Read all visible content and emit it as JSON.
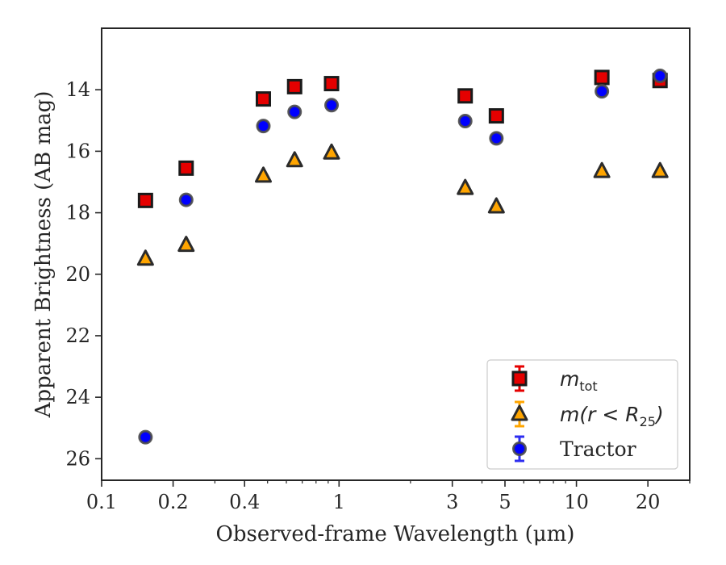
{
  "chart_data": {
    "type": "scatter",
    "title": "",
    "xlabel": "Observed-frame Wavelength (μm)",
    "ylabel": "Apparent Brightness (AB mag)",
    "xscale": "log",
    "xlim": [
      0.1,
      30
    ],
    "ylim": [
      26.7,
      12.0
    ],
    "y_inverted": true,
    "grid": false,
    "legend_position": "lower right",
    "x_ticks": [
      {
        "value": 0.1,
        "label": "0.1"
      },
      {
        "value": 0.2,
        "label": "0.2"
      },
      {
        "value": 0.4,
        "label": "0.4"
      },
      {
        "value": 1,
        "label": "1"
      },
      {
        "value": 3,
        "label": "3"
      },
      {
        "value": 5,
        "label": "5"
      },
      {
        "value": 10,
        "label": "10"
      },
      {
        "value": 20,
        "label": "20"
      }
    ],
    "y_ticks": [
      {
        "value": 14,
        "label": "14"
      },
      {
        "value": 16,
        "label": "16"
      },
      {
        "value": 18,
        "label": "18"
      },
      {
        "value": 20,
        "label": "20"
      },
      {
        "value": 22,
        "label": "22"
      },
      {
        "value": 24,
        "label": "24"
      },
      {
        "value": 26,
        "label": "26"
      }
    ],
    "series": [
      {
        "name": "m_tot",
        "legend_main": "m",
        "legend_sub": "tot",
        "marker": "square",
        "color": "#e50000",
        "errcolor": "#e50000",
        "edge": "#1a1a1a",
        "x": [
          0.153,
          0.227,
          0.48,
          0.65,
          0.93,
          3.4,
          4.6,
          12.8,
          22.5
        ],
        "y": [
          17.6,
          16.55,
          14.3,
          13.9,
          13.8,
          14.2,
          14.85,
          13.6,
          13.7
        ]
      },
      {
        "name": "m(r < R_25)",
        "legend_main": "m(r < R",
        "legend_sub": "25",
        "legend_tail": ")",
        "marker": "triangle",
        "color": "#ffa500",
        "errcolor": "#ffa500",
        "edge": "#2b2b2b",
        "x": [
          0.153,
          0.227,
          0.48,
          0.65,
          0.93,
          3.4,
          4.6,
          12.8,
          22.5
        ],
        "y": [
          19.5,
          19.05,
          16.8,
          16.3,
          16.05,
          17.2,
          17.8,
          16.65,
          16.65
        ]
      },
      {
        "name": "Tractor",
        "legend_main": "Tractor",
        "marker": "circle",
        "color": "#0000ff",
        "errcolor": "#2d2df0",
        "edge": "#4a4a4a",
        "x": [
          0.153,
          0.227,
          0.48,
          0.65,
          0.93,
          3.4,
          4.6,
          12.8,
          22.5
        ],
        "y": [
          25.3,
          17.58,
          15.18,
          14.72,
          14.5,
          15.02,
          15.58,
          14.05,
          13.55
        ]
      }
    ]
  }
}
